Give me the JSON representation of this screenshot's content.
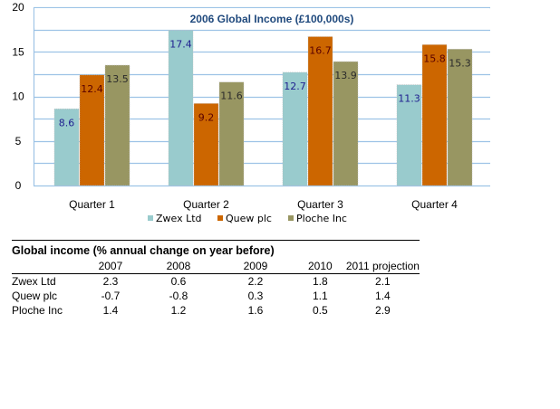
{
  "chart_data": {
    "type": "bar",
    "title": "2006 Global Income (£100,000s)",
    "xlabel": "",
    "ylabel": "",
    "ylim": [
      0,
      20
    ],
    "yticks": [
      0,
      5,
      10,
      15,
      20
    ],
    "ytick_labels": [
      "0",
      "5",
      "10",
      "15",
      "20"
    ],
    "grid": true,
    "legend_position": "bottom",
    "categories": [
      "Quarter 1",
      "Quarter 2",
      "Quarter 3",
      "Quarter 4"
    ],
    "series": [
      {
        "name": "Zwex Ltd",
        "color": "#99cbcd",
        "label_color": "#1f1f8f",
        "values": [
          8.6,
          17.4,
          12.7,
          11.3
        ],
        "labels": [
          "8.6",
          "17.4",
          "12.7",
          "11.3"
        ]
      },
      {
        "name": "Quew plc",
        "color": "#cc6600",
        "label_color": "#5a0000",
        "values": [
          12.4,
          9.2,
          16.7,
          15.8
        ],
        "labels": [
          "12.4",
          "9.2",
          "16.7",
          "15.8"
        ]
      },
      {
        "name": "Ploche Inc",
        "color": "#989662",
        "label_color": "#2b2b2b",
        "values": [
          13.5,
          11.6,
          13.9,
          15.3
        ],
        "labels": [
          "13.5",
          "11.6",
          "13.9",
          "15.3"
        ]
      }
    ]
  },
  "table": {
    "title": "Global income (% annual change on year before)",
    "columns": [
      "2007",
      "2008",
      "2009",
      "2010",
      "2011 projection"
    ],
    "rows": [
      {
        "name": "Zwex Ltd",
        "values": [
          "2.3",
          "0.6",
          "2.2",
          "1.8",
          "2.1"
        ]
      },
      {
        "name": "Quew plc",
        "values": [
          "-0.7",
          "-0.8",
          "0.3",
          "1.1",
          "1.4"
        ]
      },
      {
        "name": "Ploche Inc",
        "values": [
          "1.4",
          "1.2",
          "1.6",
          "0.5",
          "2.9"
        ]
      }
    ]
  },
  "colors": {
    "gridline": "#9dc3e6",
    "title": "#1f497d"
  }
}
